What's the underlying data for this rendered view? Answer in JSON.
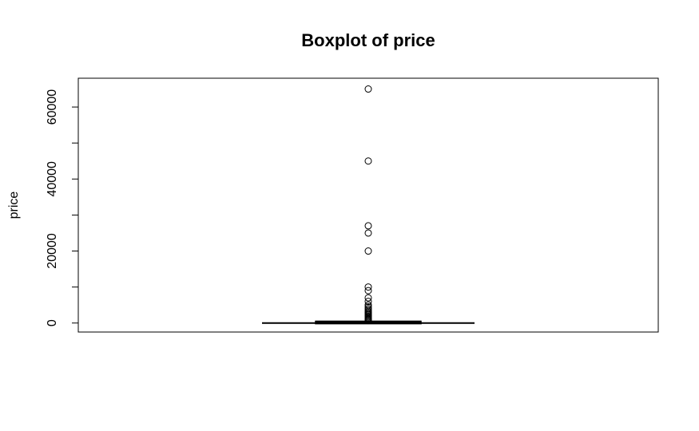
{
  "chart_data": {
    "type": "boxplot",
    "title": "Boxplot of price",
    "xlabel": "",
    "ylabel": "price",
    "ylim": [
      -2500,
      68000
    ],
    "yticks": [
      0,
      20000,
      40000,
      60000
    ],
    "yticks_minor": [
      10000,
      30000,
      50000
    ],
    "grid": false,
    "box": {
      "whisker_low": 0,
      "q1": 30,
      "median": 100,
      "q3": 250,
      "whisker_high": 550
    },
    "outliers": [
      65000,
      45000,
      27000,
      25000,
      20000,
      10000,
      9000,
      7000,
      6000,
      5000,
      4500,
      4000,
      3600,
      3200,
      2900,
      2600,
      2300,
      2000,
      1700,
      1400,
      1100,
      900,
      700
    ]
  }
}
